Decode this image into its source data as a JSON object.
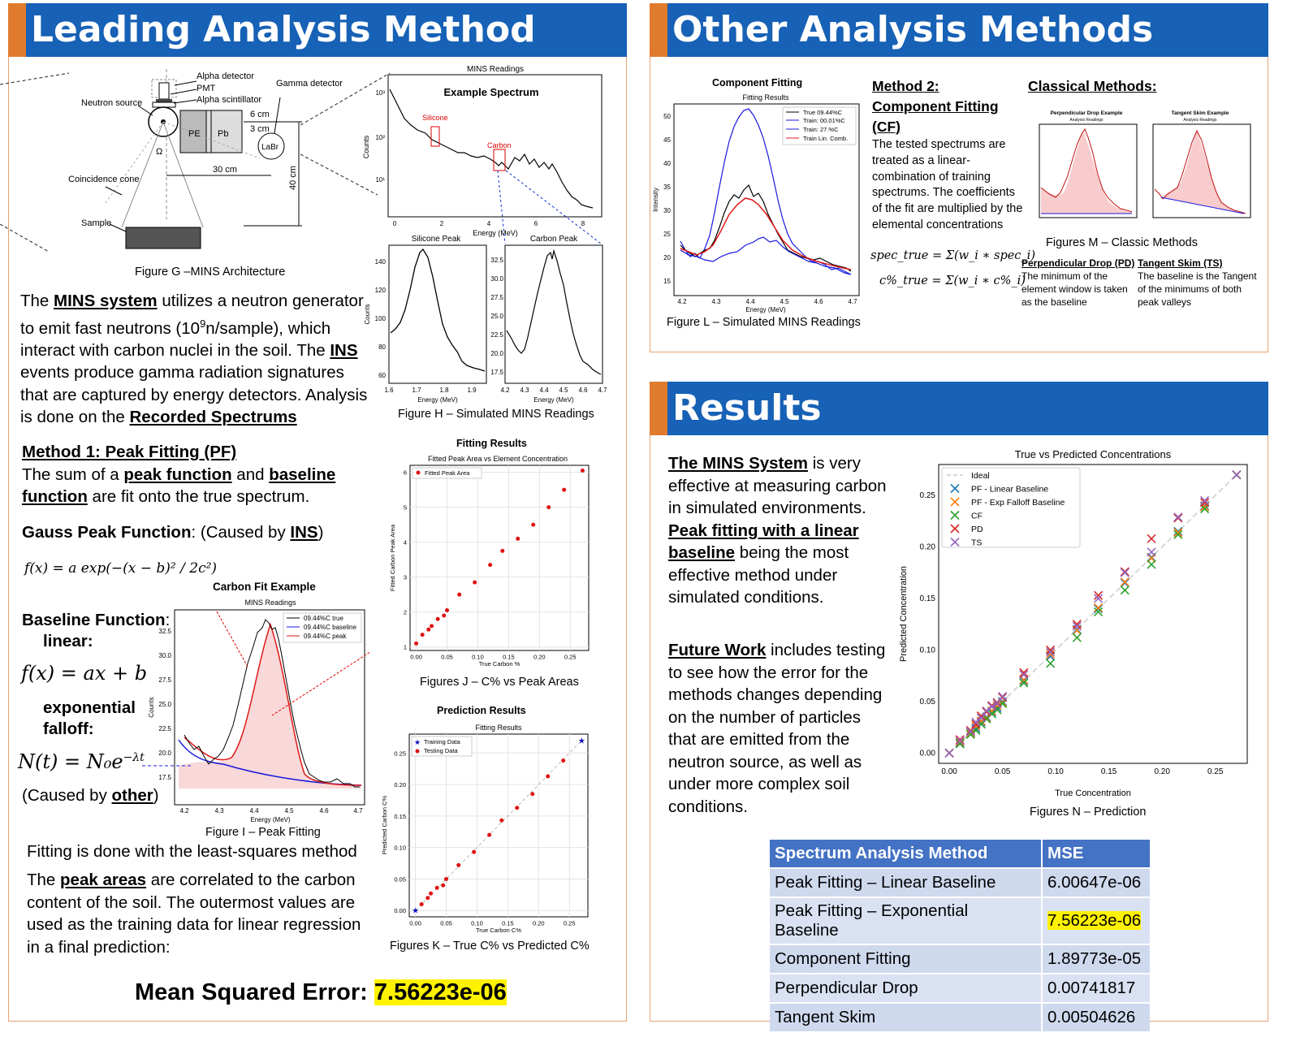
{
  "headers": {
    "leading": "Leading Analysis Method",
    "other": "Other Analysis Methods",
    "results": "Results"
  },
  "arch": {
    "labels": [
      "Alpha detector",
      "PMT",
      "Alpha scintillator",
      "Gamma detector",
      "Neutron source",
      "6 cm",
      "3 cm",
      "PE",
      "Pb",
      "LaBr",
      "Ω",
      "30 cm",
      "40 cm",
      "Coincidence cone",
      "Sample"
    ],
    "caption": "Figure G –MINS Architecture"
  },
  "spectrum": {
    "suptitle": "MINS Readings",
    "title": "Example Spectrum",
    "silicone": "Silicone",
    "carbon": "Carbon",
    "xlabel": "Energy (MeV)",
    "ylabel": "Counts",
    "yticks": [
      "10³",
      "10²",
      "10¹"
    ],
    "xticks": [
      "0",
      "2",
      "4",
      "6",
      "8"
    ],
    "silicone_peak": "Silicone Peak",
    "carbon_peak": "Carbon Peak",
    "si_yticks": [
      "140",
      "120",
      "100",
      "80",
      "60"
    ],
    "si_xticks": [
      "1.6",
      "1.7",
      "1.8",
      "1.9"
    ],
    "c_yticks": [
      "32.5",
      "30.0",
      "27.5",
      "25.0",
      "22.5",
      "20.0",
      "17.5"
    ],
    "c_xticks": [
      "4.2",
      "4.3",
      "4.4",
      "4.5",
      "4.6",
      "4.7"
    ],
    "caption": "Figure H – Simulated MINS Readings"
  },
  "intro": {
    "p1": "The ",
    "mins": "MINS system",
    "p2": " utilizes a neutron generator to emit fast neutrons (10",
    "sup": "9",
    "p3": "n/sample), which interact with carbon nuclei in the soil. The ",
    "ins": "INS",
    "p4": " events produce gamma radiation signatures that are captured by energy detectors. Analysis is done on the ",
    "rec": "Recorded Spectrums"
  },
  "method1": {
    "title": "Method 1: Peak Fitting (PF)",
    "t1": "The sum of a ",
    "peak_fn": "peak function",
    "t2": " and ",
    "base_fn": "baseline function",
    "t3": " are fit onto the true spectrum.",
    "gauss_label": "Gauss Peak Function",
    "gauss_paren": ": (Caused by ",
    "ins": "INS",
    "close": ")",
    "gauss_eq": "f(x) = a exp(−(x − b)² / 2c²)",
    "baseline_label": "Baseline Function",
    "colon": ":",
    "linear": "linear:",
    "linear_eq": "f(x) = ax + b",
    "exponential": "exponential",
    "falloff": "falloff:",
    "exp_eq": "N(t) = N₀e",
    "exp_sup": "−λt",
    "caused_by": "(Caused by ",
    "other": "other",
    "fit_caption": "Figure I – Peak Fitting",
    "lsq": "Fitting is done with the least-squares method",
    "pa1": "The ",
    "peak_areas": "peak areas",
    "pa2": " are correlated to the carbon content of the soil. The outermost values are used as the training data for linear regression in a final prediction:",
    "mse_label": "Mean Squared Error: ",
    "mse_value": "7.56223e-06"
  },
  "carbon_fit": {
    "title": "Carbon Fit Example",
    "suptitle": "MINS Readings",
    "legend": [
      "09.44%C true",
      "09.44%C baseline",
      "09.44%C peak"
    ],
    "xlabel": "Energy (MeV)",
    "ylabel": "Counts",
    "yticks": [
      "32.5",
      "30.0",
      "27.5",
      "25.0",
      "22.5",
      "20.0",
      "17.5"
    ],
    "xticks": [
      "4.2",
      "4.3",
      "4.4",
      "4.5",
      "4.6",
      "4.7"
    ]
  },
  "fitted": {
    "title": "Fitting Results",
    "subtitle": "Fitted Peak Area vs Element Concentration",
    "legend": "Fitted Peak Area",
    "xlabel": "True Carbon %",
    "ylabel": "Fitted Carbon Peak Area",
    "caption": "Figures J – C% vs Peak Areas",
    "yticks": [
      "6",
      "5",
      "4",
      "3",
      "2",
      "1"
    ],
    "xticks": [
      "0.00",
      "0.05",
      "0.10",
      "0.15",
      "0.20",
      "0.25"
    ]
  },
  "prediction": {
    "title": "Prediction Results",
    "subtitle": "Fitting Results",
    "legend": [
      "Training Data",
      "Testing Data"
    ],
    "xlabel": "True Carbon C%",
    "ylabel": "Predicted Carbon C%",
    "caption": "Figures K – True C% vs Predicted C%",
    "yticks": [
      "0.25",
      "0.20",
      "0.15",
      "0.10",
      "0.05",
      "0.00"
    ],
    "xticks": [
      "0.00",
      "0.05",
      "0.10",
      "0.15",
      "0.20",
      "0.25"
    ]
  },
  "component": {
    "title": "Component Fitting",
    "subtitle": "Fitting Results",
    "legend": [
      "True 09.44%C",
      "Train: 00.01%C",
      "Train: 27.%C",
      "Train Lin. Comb."
    ],
    "xlabel": "Energy (MeV)",
    "ylabel": "Intensity",
    "yticks": [
      "50",
      "45",
      "40",
      "35",
      "30",
      "25",
      "20",
      "15"
    ],
    "xticks": [
      "4.2",
      "4.3",
      "4.4",
      "4.5",
      "4.6",
      "4.7"
    ],
    "caption": "Figure L – Simulated MINS Readings"
  },
  "method2": {
    "title1": "Method 2:",
    "title2": "Component Fitting",
    "title3": "(CF)",
    "text": "The tested spectrums are treated as a linear-combination of training spectrums. The coefficients of the fit are multiplied by the elemental concentrations",
    "eq1": "spec_true = Σ(w_i ∗ spec_i)",
    "eq2": "c%_true = Σ(w_i ∗ c%_i)"
  },
  "classical": {
    "title": "Classical Methods:",
    "pd_title": "Perpendicular Drop Example",
    "ts_title": "Tangent Skim Example",
    "sub": "Analysis Readings",
    "caption": "Figures M – Classic Methods",
    "pd_head": "Perpendicular Drop (PD)",
    "pd_text": "The minimum of the element window is taken as the baseline",
    "ts_head": "Tangent Skim (TS)",
    "ts_text": "The baseline is the Tangent of the minimums of both peak valleys"
  },
  "results": {
    "t1_u": "The MINS System",
    "t1": " is very effective at measuring carbon in simulated environments. ",
    "t1_u2": "Peak fitting with a linear baseline",
    "t1b": " being the most effective method under simulated conditions.",
    "t2_u": "Future Work",
    "t2": " includes testing to see how the error for the methods changes depending on the number of particles that are emitted from the neutron source,  as well as under more complex soil conditions."
  },
  "tvp": {
    "title": "True vs Predicted Concentrations",
    "legend": [
      "Ideal",
      "PF - Linear Baseline",
      "PF - Exp Falloff Baseline",
      "CF",
      "PD",
      "TS"
    ],
    "xlabel": "True Concentration",
    "ylabel": "Predicted Concentration",
    "caption": "Figures N – Prediction",
    "yticks": [
      "0.25",
      "0.20",
      "0.15",
      "0.10",
      "0.05",
      "0.00"
    ],
    "xticks": [
      "0.00",
      "0.05",
      "0.10",
      "0.15",
      "0.20",
      "0.25"
    ]
  },
  "table": {
    "headers": [
      "Spectrum Analysis Method",
      "MSE"
    ],
    "rows": [
      [
        "Peak Fitting – Linear Baseline",
        "6.00647e-06"
      ],
      [
        "Peak Fitting – Exponential Baseline",
        "7.56223e-06"
      ],
      [
        "Component Fitting",
        "1.89773e-05"
      ],
      [
        "Perpendicular Drop",
        "0.00741817"
      ],
      [
        "Tangent Skim",
        "0.00504626"
      ]
    ]
  },
  "chart_data": [
    {
      "type": "scatter",
      "title": "Fitting Results",
      "subtitle": "Fitted Peak Area vs Element Concentration",
      "xlabel": "True Carbon %",
      "ylabel": "Fitted Carbon Peak Area",
      "xlim": [
        -0.01,
        0.28
      ],
      "ylim": [
        0.9,
        6.2
      ],
      "series": [
        {
          "name": "Fitted Peak Area",
          "x": [
            0.0,
            0.01,
            0.02,
            0.025,
            0.035,
            0.045,
            0.05,
            0.07,
            0.095,
            0.12,
            0.14,
            0.165,
            0.19,
            0.215,
            0.24,
            0.27
          ],
          "y": [
            1.1,
            1.35,
            1.5,
            1.6,
            1.8,
            1.9,
            2.05,
            2.5,
            2.85,
            3.35,
            3.75,
            4.1,
            4.5,
            5.0,
            5.5,
            6.05
          ]
        }
      ]
    },
    {
      "type": "scatter",
      "title": "Prediction Results",
      "subtitle": "Fitting Results",
      "xlabel": "True Carbon C%",
      "ylabel": "Predicted Carbon C%",
      "xlim": [
        -0.01,
        0.28
      ],
      "ylim": [
        -0.01,
        0.28
      ],
      "series": [
        {
          "name": "Training Data",
          "x": [
            0.0,
            0.27
          ],
          "y": [
            0.0,
            0.27
          ]
        },
        {
          "name": "Testing Data",
          "x": [
            0.01,
            0.02,
            0.025,
            0.035,
            0.045,
            0.05,
            0.07,
            0.095,
            0.12,
            0.14,
            0.165,
            0.19,
            0.215,
            0.24
          ],
          "y": [
            0.01,
            0.02,
            0.027,
            0.036,
            0.04,
            0.05,
            0.072,
            0.093,
            0.12,
            0.143,
            0.163,
            0.185,
            0.213,
            0.238
          ]
        }
      ]
    },
    {
      "type": "scatter",
      "title": "True vs Predicted Concentrations",
      "xlabel": "True Concentration",
      "ylabel": "Predicted Concentration",
      "xlim": [
        -0.01,
        0.28
      ],
      "ylim": [
        -0.01,
        0.28
      ],
      "x": [
        0.0,
        0.01,
        0.02,
        0.025,
        0.03,
        0.035,
        0.04,
        0.045,
        0.05,
        0.07,
        0.095,
        0.12,
        0.14,
        0.165,
        0.19,
        0.215,
        0.24,
        0.27
      ],
      "series": [
        {
          "name": "Ideal",
          "x": [
            0.0,
            0.27
          ],
          "y": [
            0.0,
            0.27
          ]
        },
        {
          "name": "PF - Linear Baseline",
          "y": [
            0.0,
            0.01,
            0.02,
            0.024,
            0.03,
            0.035,
            0.04,
            0.044,
            0.05,
            0.07,
            0.094,
            0.12,
            0.14,
            0.165,
            0.19,
            0.215,
            0.24,
            0.27
          ]
        },
        {
          "name": "PF - Exp Falloff Baseline",
          "y": [
            0.0,
            0.011,
            0.019,
            0.026,
            0.031,
            0.034,
            0.041,
            0.046,
            0.049,
            0.071,
            0.096,
            0.119,
            0.141,
            0.166,
            0.189,
            0.214,
            0.239,
            0.27
          ]
        },
        {
          "name": "CF",
          "y": [
            0.0,
            0.009,
            0.018,
            0.022,
            0.028,
            0.033,
            0.038,
            0.042,
            0.048,
            0.068,
            0.087,
            0.112,
            0.137,
            0.158,
            0.183,
            0.212,
            0.237,
            0.27
          ]
        },
        {
          "name": "PD",
          "y": [
            0.0,
            0.013,
            0.022,
            0.028,
            0.036,
            0.04,
            0.046,
            0.049,
            0.054,
            0.078,
            0.1,
            0.125,
            0.153,
            0.176,
            0.208,
            0.228,
            0.243,
            0.27
          ]
        },
        {
          "name": "TS",
          "y": [
            0.0,
            0.012,
            0.021,
            0.03,
            0.034,
            0.041,
            0.045,
            0.048,
            0.055,
            0.076,
            0.098,
            0.123,
            0.15,
            0.175,
            0.195,
            0.229,
            0.245,
            0.27
          ]
        }
      ]
    }
  ]
}
